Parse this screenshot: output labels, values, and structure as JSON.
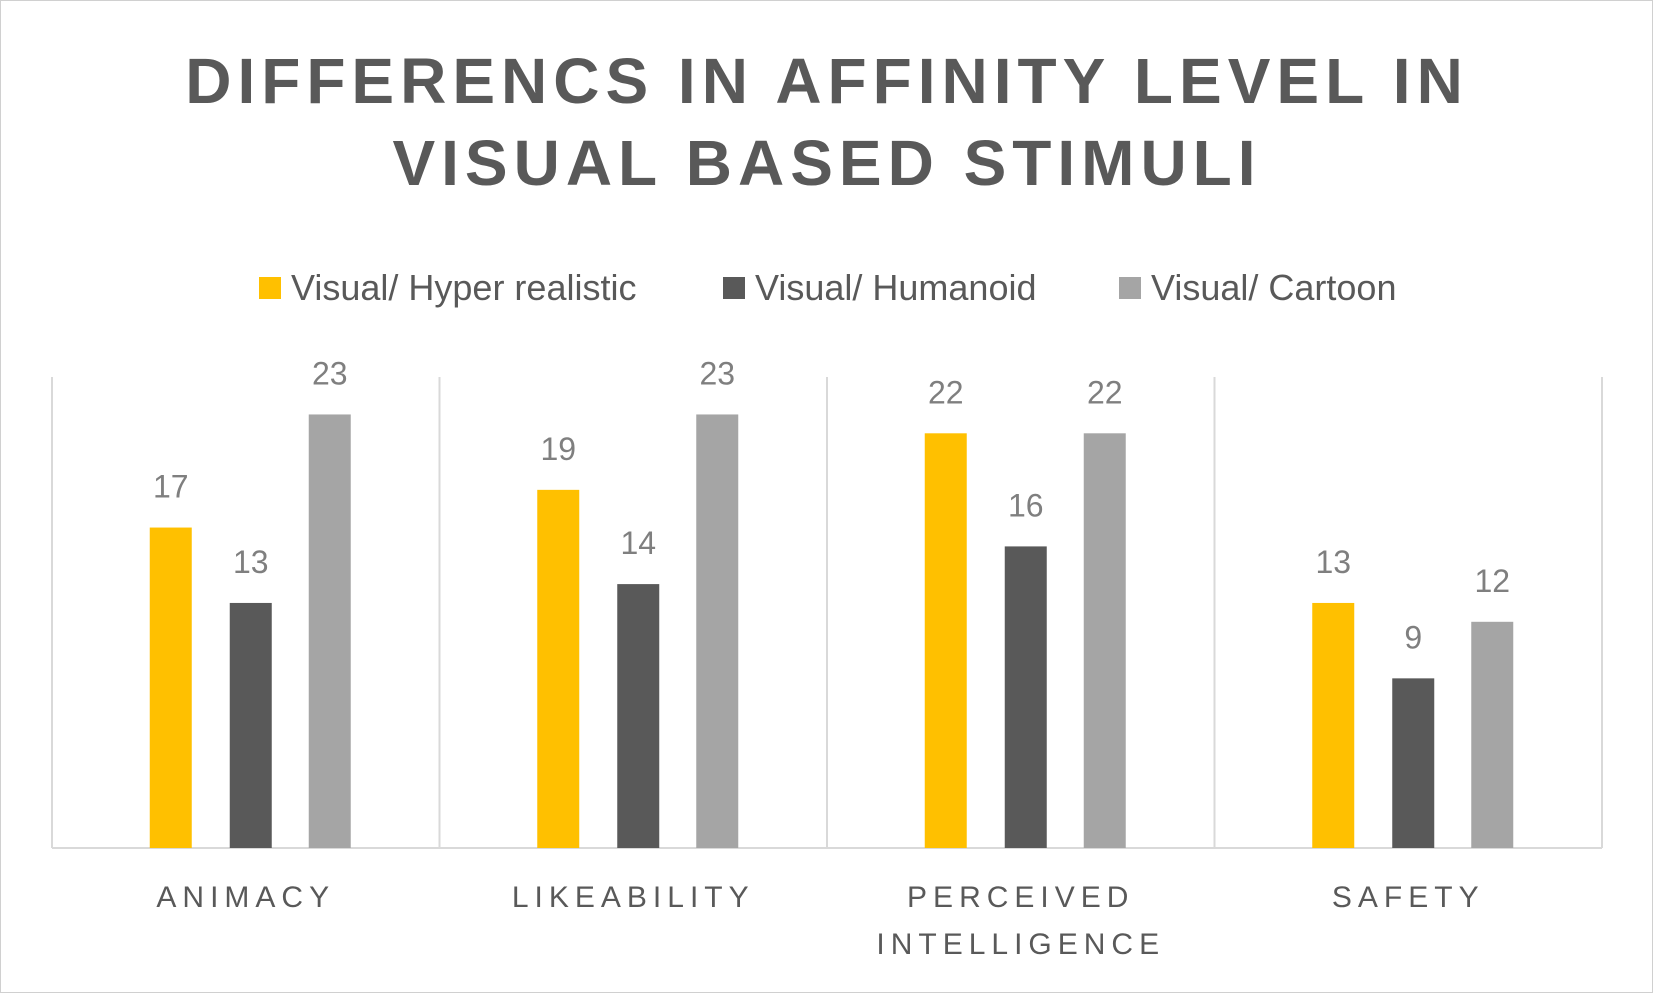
{
  "chart_data": {
    "type": "bar",
    "title": "DIFFERENCS IN AFFINITY LEVEL IN VISUAL BASED STIMULI",
    "title_lines": [
      "DIFFERENCS IN AFFINITY LEVEL IN",
      "VISUAL BASED STIMULI"
    ],
    "categories": [
      "ANIMACY",
      "LIKEABILITY",
      "PERCEIVED INTELLIGENCE",
      "SAFETY"
    ],
    "category_lines": [
      [
        "ANIMACY"
      ],
      [
        "LIKEABILITY"
      ],
      [
        "PERCEIVED",
        "INTELLIGENCE"
      ],
      [
        "SAFETY"
      ]
    ],
    "series": [
      {
        "name": "Visual/ Hyper realistic",
        "color": "#FFC000",
        "values": [
          17,
          19,
          22,
          13
        ]
      },
      {
        "name": "Visual/ Humanoid",
        "color": "#595959",
        "values": [
          13,
          14,
          16,
          9
        ]
      },
      {
        "name": "Visual/ Cartoon",
        "color": "#A5A5A5",
        "values": [
          23,
          23,
          22,
          12
        ]
      }
    ],
    "ylim": [
      0,
      25
    ],
    "xlabel": "",
    "ylabel": "",
    "grid": false,
    "category_separators": true,
    "data_labels": true,
    "legend_position": "top"
  }
}
